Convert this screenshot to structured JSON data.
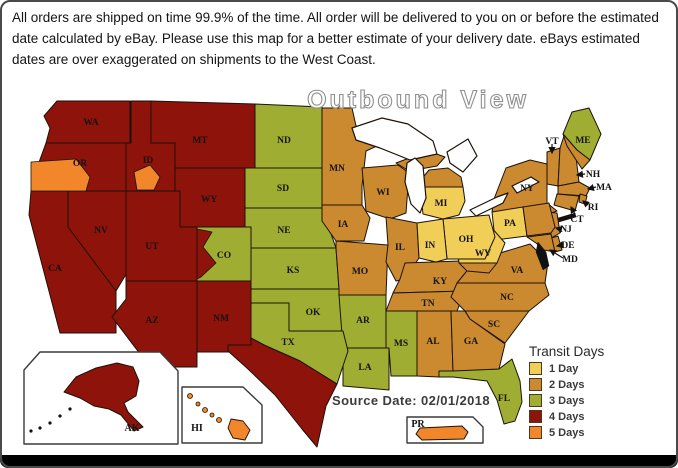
{
  "header": {
    "text": "All orders are shipped on time 99.9% of the time.  All order will be delivered to you on or before the estimated date calculated by eBay.  Please use this map for a better estimate of your delivery date.  eBays estimated dates are over exaggerated on shipments to the West Coast."
  },
  "map": {
    "title": "Outbound View",
    "source_date": "Source Date: 02/01/2018",
    "legend": {
      "title": "Transit Days",
      "items": [
        {
          "label": "1 Day",
          "color": "#F0CE58"
        },
        {
          "label": "2 Days",
          "color": "#CC8A30"
        },
        {
          "label": "3 Days",
          "color": "#9FAE33"
        },
        {
          "label": "4 Days",
          "color": "#8E130B"
        },
        {
          "label": "5 Days",
          "color": "#F1862A"
        }
      ]
    },
    "insets": [
      {
        "label": "AK"
      },
      {
        "label": "HI"
      },
      {
        "label": "PR"
      }
    ],
    "states": [
      {
        "abbr": "WA",
        "days": 4
      },
      {
        "abbr": "OR",
        "days": 4
      },
      {
        "abbr": "CA",
        "days": 4
      },
      {
        "abbr": "NV",
        "days": 4
      },
      {
        "abbr": "ID",
        "days": 4
      },
      {
        "abbr": "MT",
        "days": 4
      },
      {
        "abbr": "WY",
        "days": 4
      },
      {
        "abbr": "UT",
        "days": 4
      },
      {
        "abbr": "AZ",
        "days": 4
      },
      {
        "abbr": "NM",
        "days": 4
      },
      {
        "abbr": "ND",
        "days": 3
      },
      {
        "abbr": "SD",
        "days": 3
      },
      {
        "abbr": "NE",
        "days": 3
      },
      {
        "abbr": "KS",
        "days": 3
      },
      {
        "abbr": "CO",
        "days": 3
      },
      {
        "abbr": "OK",
        "days": 3
      },
      {
        "abbr": "AR",
        "days": 3
      },
      {
        "abbr": "LA",
        "days": 3
      },
      {
        "abbr": "MS",
        "days": 3
      },
      {
        "abbr": "FL",
        "days": 3
      },
      {
        "abbr": "TX",
        "days": 4,
        "split": {
          "north": 3,
          "south": 4
        }
      },
      {
        "abbr": "MN",
        "days": 2
      },
      {
        "abbr": "WI",
        "days": 2
      },
      {
        "abbr": "IA",
        "days": 2
      },
      {
        "abbr": "MO",
        "days": 2
      },
      {
        "abbr": "IL",
        "days": 2
      },
      {
        "abbr": "KY",
        "days": 2
      },
      {
        "abbr": "TN",
        "days": 2
      },
      {
        "abbr": "AL",
        "days": 2
      },
      {
        "abbr": "GA",
        "days": 2
      },
      {
        "abbr": "SC",
        "days": 2
      },
      {
        "abbr": "NC",
        "days": 2
      },
      {
        "abbr": "VA",
        "days": 2
      },
      {
        "abbr": "NY",
        "days": 2
      },
      {
        "abbr": "VT",
        "days": 2
      },
      {
        "abbr": "NH",
        "days": 2
      },
      {
        "abbr": "MA",
        "days": 2
      },
      {
        "abbr": "RI",
        "days": 2
      },
      {
        "abbr": "CT",
        "days": 2
      },
      {
        "abbr": "NJ",
        "days": 2
      },
      {
        "abbr": "DE",
        "days": 2
      },
      {
        "abbr": "MD",
        "days": 2
      },
      {
        "abbr": "ME",
        "days": 3,
        "split": {
          "north": 3,
          "south": 2
        }
      },
      {
        "abbr": "PA",
        "days": 2,
        "split": {
          "west": 1,
          "east": 2
        }
      },
      {
        "abbr": "MI",
        "days": 1,
        "split": {
          "upper": 2,
          "lower": 1
        }
      },
      {
        "abbr": "WV",
        "days": 1,
        "split": {
          "north": 1,
          "south": 2
        }
      },
      {
        "abbr": "OH",
        "days": 1
      },
      {
        "abbr": "IN",
        "days": 1
      },
      {
        "abbr": "AK",
        "days": 4
      },
      {
        "abbr": "HI",
        "days": 5
      },
      {
        "abbr": "PR",
        "days": 5
      }
    ],
    "patches": [
      {
        "state": "OR",
        "days": 5
      },
      {
        "state": "ID",
        "days": 5
      },
      {
        "state": "CO",
        "days": 4
      }
    ]
  }
}
